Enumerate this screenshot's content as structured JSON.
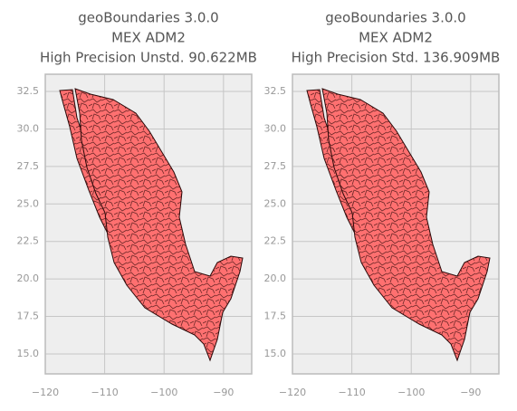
{
  "chart_data": [
    {
      "type": "map",
      "title": [
        "geoBoundaries 3.0.0",
        "MEX ADM2",
        "High Precision Unstd. 90.622MB"
      ],
      "xlim": [
        -120,
        -85.25
      ],
      "ylim": [
        13.67,
        33.65
      ],
      "xticks": [
        {
          "value": -120,
          "label": "−120"
        },
        {
          "value": -110,
          "label": "−110"
        },
        {
          "value": -100,
          "label": "−100"
        },
        {
          "value": -90,
          "label": "−90"
        }
      ],
      "yticks": [
        {
          "value": 15,
          "label": "15.0"
        },
        17.5,
        {
          "value": 20,
          "label": "20.0"
        },
        22.5,
        {
          "value": 25,
          "label": "25.0"
        },
        27.5,
        {
          "value": 30,
          "label": "30.0"
        },
        32.5
      ],
      "grid": true,
      "color": "#ff7070"
    },
    {
      "type": "map",
      "title": [
        "geoBoundaries 3.0.0",
        "MEX ADM2",
        "High Precision Std. 136.909MB"
      ],
      "xlim": [
        -120,
        -85.25
      ],
      "ylim": [
        13.67,
        33.65
      ],
      "xticks": [
        {
          "value": -120,
          "label": "−120"
        },
        {
          "value": -110,
          "label": "−110"
        },
        {
          "value": -100,
          "label": "−100"
        },
        {
          "value": -90,
          "label": "−90"
        }
      ],
      "yticks": [
        {
          "value": 15,
          "label": "15.0"
        },
        17.5,
        {
          "value": 20,
          "label": "20.0"
        },
        22.5,
        {
          "value": 25,
          "label": "25.0"
        },
        27.5,
        {
          "value": 30,
          "label": "30.0"
        },
        32.5
      ],
      "grid": true,
      "color": "#ff7070"
    }
  ]
}
